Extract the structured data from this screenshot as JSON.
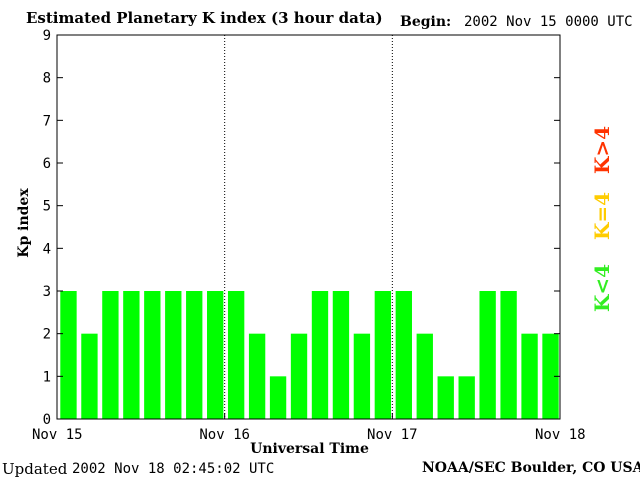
{
  "header": {
    "title": "Estimated Planetary K index (3 hour data)",
    "begin_label": "Begin:",
    "begin_value": "2002 Nov 15 0000 UTC"
  },
  "footer": {
    "updated_label": "Updated",
    "updated_value": "2002 Nov 18 02:45:02 UTC",
    "credit": "NOAA/SEC Boulder, CO USA"
  },
  "legend": {
    "high": "K>4",
    "high_color": "#ff3300",
    "equal": "K=4",
    "equal_color": "#ffcc00",
    "low": "K<4",
    "low_color": "#33ee22"
  },
  "chart_data": {
    "type": "bar",
    "title": "Estimated Planetary K index (3 hour data)",
    "xlabel": "Universal Time",
    "ylabel": "Kp index",
    "ylim": [
      0,
      9
    ],
    "yticks": [
      "0",
      "1",
      "2",
      "3",
      "4",
      "5",
      "6",
      "7",
      "8",
      "9"
    ],
    "xticks": [
      "Nov 15",
      "Nov 16",
      "Nov 17",
      "Nov 18"
    ],
    "bar_color": "#00ff00",
    "values": [
      3,
      2,
      3,
      3,
      3,
      3,
      3,
      3,
      3,
      2,
      1,
      2,
      3,
      3,
      2,
      3,
      3,
      2,
      1,
      1,
      3,
      3,
      2,
      2
    ],
    "day_separators": "dotted"
  }
}
